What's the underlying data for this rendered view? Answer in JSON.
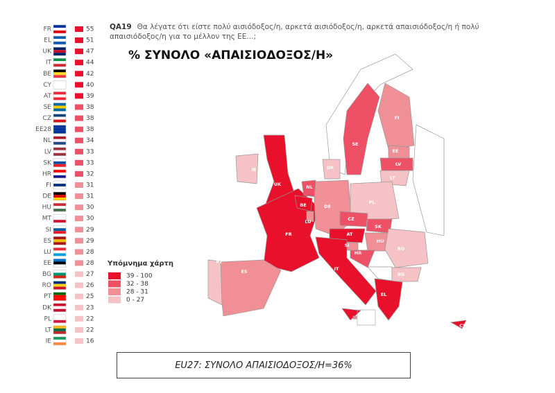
{
  "question": {
    "code": "QA19",
    "text": "Θα λέγατε ότι είστε πολύ αισιόδοξος/η, αρκετά αισιόδοξος/η, αρκετά απαισιόδοξος/η ή πολύ απαισιόδοξος/η για το μέλλον της ΕΕ...;"
  },
  "map_title": "% ΣΥΝΟΛΟ «ΑΠΑΙΣΙΟΔΟΞΟΣ/Η»",
  "ranking": [
    {
      "country": "FR",
      "value": 55,
      "color": "#e8102a"
    },
    {
      "country": "EL",
      "value": 51,
      "color": "#e8102a"
    },
    {
      "country": "UK",
      "value": 47,
      "color": "#e8102a"
    },
    {
      "country": "IT",
      "value": 44,
      "color": "#e8102a"
    },
    {
      "country": "BE",
      "value": 42,
      "color": "#e8102a"
    },
    {
      "country": "CY",
      "value": 40,
      "color": "#e8102a"
    },
    {
      "country": "AT",
      "value": 39,
      "color": "#e8102a"
    },
    {
      "country": "SE",
      "value": 38,
      "color": "#ee5065"
    },
    {
      "country": "CZ",
      "value": 38,
      "color": "#ee5065"
    },
    {
      "country": "EE28",
      "value": 38,
      "color": "#ee5065"
    },
    {
      "country": "NL",
      "value": 34,
      "color": "#ee5065"
    },
    {
      "country": "LV",
      "value": 33,
      "color": "#ee5065"
    },
    {
      "country": "SK",
      "value": 33,
      "color": "#ee5065"
    },
    {
      "country": "HR",
      "value": 32,
      "color": "#ee5065"
    },
    {
      "country": "FI",
      "value": 31,
      "color": "#f08f95"
    },
    {
      "country": "DE",
      "value": 31,
      "color": "#f08f95"
    },
    {
      "country": "HU",
      "value": 30,
      "color": "#f08f95"
    },
    {
      "country": "MT",
      "value": 30,
      "color": "#f08f95"
    },
    {
      "country": "SI",
      "value": 29,
      "color": "#f08f95"
    },
    {
      "country": "ES",
      "value": 29,
      "color": "#f08f95"
    },
    {
      "country": "LU",
      "value": 28,
      "color": "#f08f95"
    },
    {
      "country": "EE",
      "value": 28,
      "color": "#f08f95"
    },
    {
      "country": "BG",
      "value": 27,
      "color": "#f5c2c5"
    },
    {
      "country": "RO",
      "value": 26,
      "color": "#f5c2c5"
    },
    {
      "country": "PT",
      "value": 25,
      "color": "#f5c2c5"
    },
    {
      "country": "DK",
      "value": 23,
      "color": "#f5c2c5"
    },
    {
      "country": "PL",
      "value": 22,
      "color": "#f5c2c5"
    },
    {
      "country": "LT",
      "value": 22,
      "color": "#f5c2c5"
    },
    {
      "country": "IE",
      "value": 16,
      "color": "#f5c2c5"
    }
  ],
  "legend": {
    "title": "Υπόμνημα χάρτη",
    "items": [
      {
        "label": "39 - 100",
        "color": "#e8102a"
      },
      {
        "label": "32 - 38",
        "color": "#ee5065"
      },
      {
        "label": "28 - 31",
        "color": "#f08f95"
      },
      {
        "label": "0 - 27",
        "color": "#f5c2c5"
      }
    ]
  },
  "map_labels": [
    "IE",
    "UK",
    "FR",
    "PT",
    "ES",
    "BE",
    "NL",
    "LU",
    "DE",
    "DK",
    "SE",
    "FI",
    "EE",
    "LV",
    "LT",
    "PL",
    "CZ",
    "SK",
    "AT",
    "HU",
    "SI",
    "HR",
    "RO",
    "BG",
    "IT",
    "MT",
    "EL",
    "CY"
  ],
  "footer": "EU27: ΣΥΝΟΛΟ ΑΠΑΙΣΙΟΔΟΞΟΣ/Η=36%"
}
